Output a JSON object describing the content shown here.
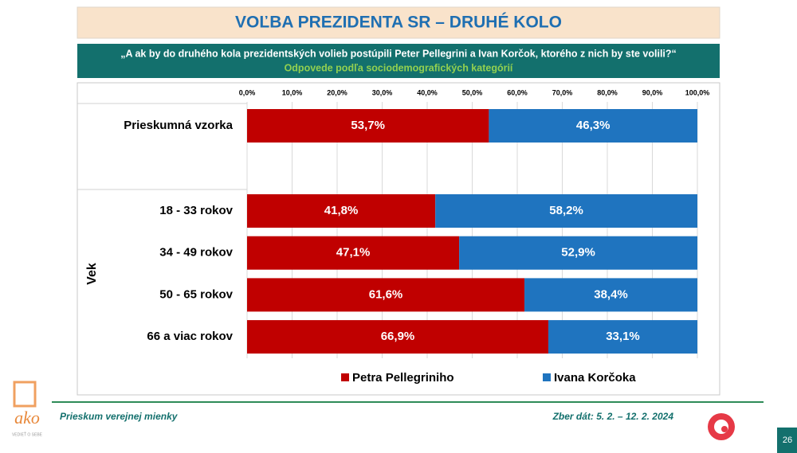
{
  "chart_data": {
    "type": "stacked-bar-horizontal",
    "title": "VOĽBA PREZIDENTA SR – DRUHÉ KOLO",
    "subtitle": "„A ak by do druhého kola prezidentských volieb postúpili Peter Pellegrini a Ivan Korčok, ktorého z nich by ste volili?“",
    "note": "Odpovede podľa sociodemografických kategórií",
    "y_axis_label": "Vek",
    "categories": [
      "Prieskumná vzorka",
      "18 - 33 rokov",
      "34 - 49 rokov",
      "50 - 65 rokov",
      "66 a viac rokov"
    ],
    "series": [
      {
        "name": "Petra Pellegriniho",
        "color": "#c00000",
        "values": [
          53.7,
          41.8,
          47.1,
          61.6,
          66.9
        ],
        "value_labels": [
          "53,7%",
          "41,8%",
          "47,1%",
          "61,6%",
          "66,9%"
        ]
      },
      {
        "name": "Ivana Korčoka",
        "color": "#1f74bf",
        "values": [
          46.3,
          58.2,
          52.9,
          38.4,
          33.1
        ],
        "value_labels": [
          "46,3%",
          "58,2%",
          "52,9%",
          "38,4%",
          "33,1%"
        ]
      }
    ],
    "xlim": [
      0,
      100
    ],
    "xticks": [
      {
        "value": 0,
        "label": "0,0%"
      },
      {
        "value": 10,
        "label": "10,0%"
      },
      {
        "value": 20,
        "label": "20,0%"
      },
      {
        "value": 30,
        "label": "30,0%"
      },
      {
        "value": 40,
        "label": "40,0%"
      },
      {
        "value": 50,
        "label": "50,0%"
      },
      {
        "value": 60,
        "label": "60,0%"
      },
      {
        "value": 70,
        "label": "70,0%"
      },
      {
        "value": 80,
        "label": "80,0%"
      },
      {
        "value": 90,
        "label": "90,0%"
      },
      {
        "value": 100,
        "label": "100,0%"
      }
    ],
    "grid": true,
    "legend": "bottom"
  },
  "footer": {
    "left": "Prieskum verejnej mienky",
    "right": "Zber dát: 5. 2. – 12. 2. 2024",
    "page": "26",
    "logo": "ako",
    "logo_tagline": "VEDIEŤ O SEBE"
  }
}
